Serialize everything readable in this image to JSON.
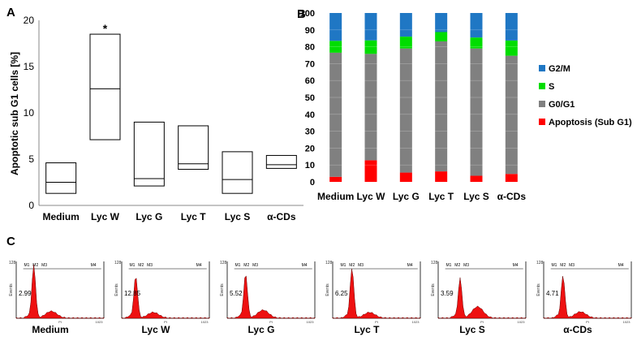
{
  "panel_labels": {
    "a": "A",
    "b": "B",
    "c": "C"
  },
  "chart_data": [
    {
      "type": "box",
      "panel": "A",
      "ylabel": "Apoptotic sub G1 cells [%]",
      "ylim": [
        0,
        20
      ],
      "yticks": [
        0,
        5,
        10,
        15,
        20
      ],
      "categories": [
        "Medium",
        "Lyc W",
        "Lyc G",
        "Lyc T",
        "Lyc S",
        "α-CDs"
      ],
      "boxes": [
        {
          "low": 1.3,
          "median": 2.5,
          "high": 4.6
        },
        {
          "low": 7.1,
          "median": 12.6,
          "high": 18.5
        },
        {
          "low": 2.1,
          "median": 2.9,
          "high": 9.0
        },
        {
          "low": 3.9,
          "median": 4.5,
          "high": 8.6
        },
        {
          "low": 1.3,
          "median": 2.8,
          "high": 5.8
        },
        {
          "low": 4.0,
          "median": 4.4,
          "high": 5.4
        }
      ],
      "annotation": {
        "text": "*",
        "category": "Lyc W"
      }
    },
    {
      "type": "bar",
      "stacked": true,
      "panel": "B",
      "ylim": [
        0,
        100
      ],
      "yticks": [
        0,
        10,
        20,
        30,
        40,
        50,
        60,
        70,
        80,
        90,
        100
      ],
      "categories": [
        "Medium",
        "Lyc W",
        "Lyc G",
        "Lyc T",
        "Lyc S",
        "α-CDs"
      ],
      "series": [
        {
          "name": "Apoptosis (Sub G1)",
          "color": "#ff0000",
          "values": [
            3,
            12.8,
            5.5,
            6.2,
            3.6,
            4.7
          ]
        },
        {
          "name": "G0/G1",
          "color": "#808080",
          "values": [
            73.5,
            63,
            73.5,
            77,
            75.4,
            70
          ]
        },
        {
          "name": "S",
          "color": "#00dd00",
          "values": [
            7,
            8,
            7,
            5.5,
            6.5,
            9
          ]
        },
        {
          "name": "G2/M",
          "color": "#1f77c4",
          "values": [
            16.5,
            16.2,
            14,
            11.3,
            14.5,
            16.3
          ]
        }
      ],
      "legend_order": [
        "G2/M",
        "S",
        "G0/G1",
        "Apoptosis (Sub G1)"
      ],
      "legend_position": "right"
    },
    {
      "type": "histogram",
      "panel": "C",
      "y_top_tick": "128",
      "x_end_tick": "1023",
      "y_axis_label": "Events",
      "x_axis_label": "PI",
      "markers": [
        "M1",
        "M2",
        "M3",
        "M4"
      ],
      "histograms": [
        {
          "label": "Medium",
          "value": "2.99"
        },
        {
          "label": "Lyc W",
          "value": "12.85"
        },
        {
          "label": "Lyc G",
          "value": "5.52"
        },
        {
          "label": "Lyc T",
          "value": "6.25"
        },
        {
          "label": "Lyc S",
          "value": "3.59"
        },
        {
          "label": "α-CDs",
          "value": "4.71"
        }
      ]
    }
  ]
}
